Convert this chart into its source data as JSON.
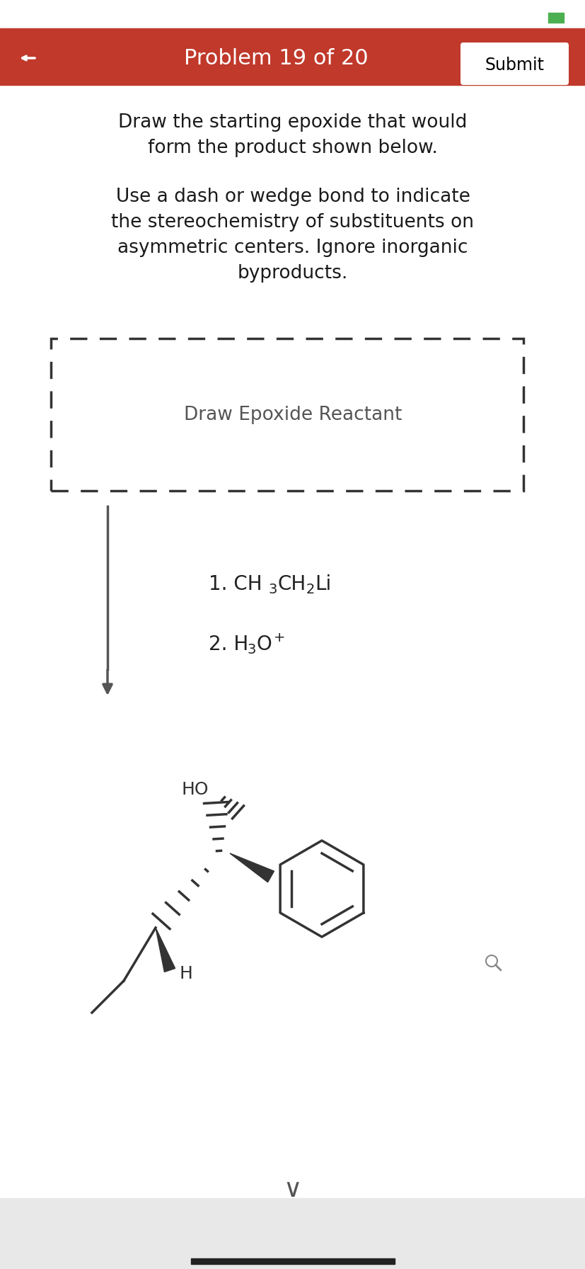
{
  "title_bar_color": "#c0392b",
  "title_text": "Problem 19 of 20",
  "title_text_color": "#ffffff",
  "submit_btn_text": "Submit",
  "body_bg": "#ffffff",
  "instruction_text1": "Draw the starting epoxide that would\nform the product shown below.",
  "instruction_text2": "Use a dash or wedge bond to indicate\nthe stereochemistry of substituents on\nasymmetric centers. Ignore inorganic\nbyproducts.",
  "draw_box_label": "Draw Epoxide Reactant",
  "reagent1_prefix": "1. CH",
  "reagent1_sub1": "3",
  "reagent1_mid": "CH",
  "reagent1_sub2": "2",
  "reagent1_suffix": "Li",
  "reagent2_prefix": "2. H",
  "reagent2_sub": "3",
  "reagent2_suffix": "O",
  "product_HO_label": "HO",
  "product_H_label": "H",
  "footer_bg": "#e8e8e8",
  "bottom_bar_color": "#222222",
  "chevron_color": "#555555",
  "mol_color": "#333333",
  "green_color": "#4caf50"
}
